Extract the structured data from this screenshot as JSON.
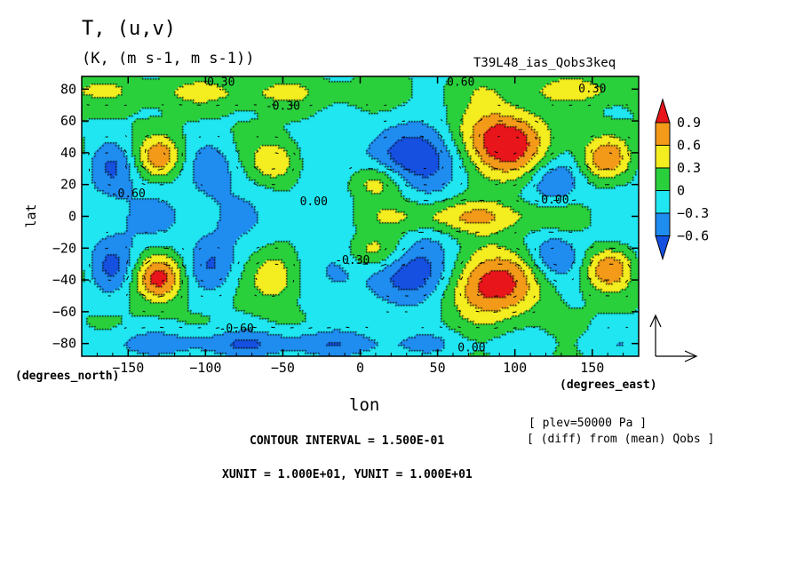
{
  "chart_data": {
    "type": "heatmap",
    "title": "T, (u,v)",
    "subtitle": "(K, (m s-1, m s-1))",
    "run_name": "T39L48_ias_Qobs3keq",
    "xlabel": "lon",
    "ylabel": "lat",
    "x_units": "(degrees_east)",
    "y_units": "(degrees_north)",
    "xlim": [
      -180,
      180
    ],
    "ylim": [
      -88,
      88
    ],
    "x_ticks": [
      -150,
      -100,
      -50,
      0,
      50,
      100,
      150
    ],
    "y_ticks": [
      -80,
      -60,
      -40,
      -20,
      0,
      20,
      40,
      60,
      80
    ],
    "colorbar": {
      "labels": [
        "0.9",
        "0.6",
        "0.3",
        "0",
        "-0.3",
        "-0.6"
      ],
      "colors": [
        "#e8151b",
        "#f39a19",
        "#f4ed1f",
        "#29d03c",
        "#1fe6f0",
        "#1f8cf0",
        "#1550e0"
      ],
      "extend": "both"
    },
    "contour_labels": [
      {
        "text": "0.30",
        "lon": -90,
        "lat": 82
      },
      {
        "text": "0.60",
        "lon": 65,
        "lat": 82
      },
      {
        "text": "0.30",
        "lon": 150,
        "lat": 78
      },
      {
        "text": "-0.30",
        "lon": -50,
        "lat": 67
      },
      {
        "text": "-0.60",
        "lon": -150,
        "lat": 12
      },
      {
        "text": "0.00",
        "lon": -30,
        "lat": 7
      },
      {
        "text": "0.00",
        "lon": 126,
        "lat": 8
      },
      {
        "text": "-0.30",
        "lon": -5,
        "lat": -30
      },
      {
        "text": "-0.60",
        "lon": -80,
        "lat": -73
      },
      {
        "text": "0.00",
        "lon": 72,
        "lat": -85
      }
    ],
    "anomalies": [
      {
        "lon": 88,
        "lat": 46,
        "amp": 1.25,
        "sx": 22,
        "sy": 15
      },
      {
        "lon": 80,
        "lat": -42,
        "amp": 1.25,
        "sx": 22,
        "sy": 15
      },
      {
        "lon": 42,
        "lat": 38,
        "amp": -1.05,
        "sx": 20,
        "sy": 15
      },
      {
        "lon": 42,
        "lat": -36,
        "amp": -1.05,
        "sx": 20,
        "sy": 15
      },
      {
        "lon": -130,
        "lat": 38,
        "amp": 0.75,
        "sx": 10,
        "sy": 9
      },
      {
        "lon": -130,
        "lat": -38,
        "amp": 0.95,
        "sx": 11,
        "sy": 10
      },
      {
        "lon": -55,
        "lat": 35,
        "amp": 0.65,
        "sx": 10,
        "sy": 9
      },
      {
        "lon": -55,
        "lat": -38,
        "amp": 0.6,
        "sx": 10,
        "sy": 11
      },
      {
        "lon": 158,
        "lat": 37,
        "amp": 0.8,
        "sx": 11,
        "sy": 9
      },
      {
        "lon": 160,
        "lat": -33,
        "amp": 0.8,
        "sx": 11,
        "sy": 9
      },
      {
        "lon": 70,
        "lat": 0,
        "amp": 0.6,
        "sx": 45,
        "sy": 7
      },
      {
        "lon": 10,
        "lat": 22,
        "amp": 0.55,
        "sx": 14,
        "sy": 8
      },
      {
        "lon": 10,
        "lat": -22,
        "amp": 0.55,
        "sx": 14,
        "sy": 8
      },
      {
        "lon": -160,
        "lat": 30,
        "amp": -0.55,
        "sx": 11,
        "sy": 12
      },
      {
        "lon": -160,
        "lat": -30,
        "amp": -0.6,
        "sx": 11,
        "sy": 12
      },
      {
        "lon": -95,
        "lat": 30,
        "amp": -0.45,
        "sx": 12,
        "sy": 12
      },
      {
        "lon": -95,
        "lat": -30,
        "amp": -0.55,
        "sx": 12,
        "sy": 12
      },
      {
        "lon": -15,
        "lat": 35,
        "amp": -0.4,
        "sx": 12,
        "sy": 14
      },
      {
        "lon": -15,
        "lat": -35,
        "amp": -0.45,
        "sx": 12,
        "sy": 14
      },
      {
        "lon": 125,
        "lat": 22,
        "amp": -0.6,
        "sx": 12,
        "sy": 10
      },
      {
        "lon": 125,
        "lat": -25,
        "amp": -0.6,
        "sx": 12,
        "sy": 10
      },
      {
        "lon": -60,
        "lat": -80,
        "amp": -0.55,
        "sx": 90,
        "sy": 6
      },
      {
        "lon": -80,
        "lat": 78,
        "amp": 0.35,
        "sx": 60,
        "sy": 6
      },
      {
        "lon": 140,
        "lat": 80,
        "amp": 0.35,
        "sx": 40,
        "sy": 6
      },
      {
        "lon": -120,
        "lat": 0,
        "amp": -0.3,
        "sx": 70,
        "sy": 14
      }
    ]
  },
  "footer": {
    "plev_note": "[ plev=50000 Pa ]",
    "diff_note": "[ (diff) from (mean) Qobs ]",
    "contour_interval": "CONTOUR INTERVAL = 1.500E-01",
    "vector_units": "XUNIT = 1.000E+01, YUNIT = 1.000E+01"
  }
}
